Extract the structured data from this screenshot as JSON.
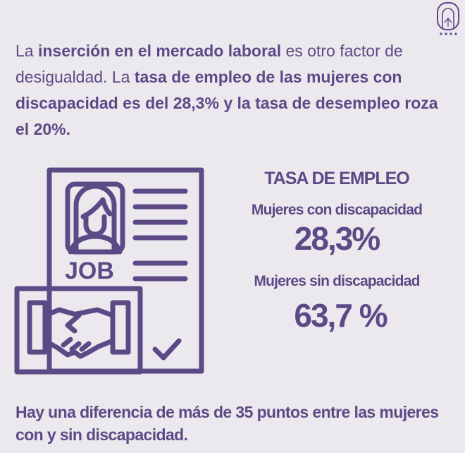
{
  "intro": {
    "t1": "La ",
    "b1": "inserción en el mercado laboral",
    "t2": " es otro factor de desigualdad. La ",
    "b2": "tasa de empleo de las mujeres con discapacidad es del 28,3% y la tasa de desempleo roza el 20%."
  },
  "illustration": {
    "badge": "JOB",
    "icon": "job-application-handshake-icon"
  },
  "stats": {
    "title": "TASA DE EMPLEO",
    "items": [
      {
        "label": "Mujeres con discapacidad",
        "value": "28,3%"
      },
      {
        "label": "Mujeres sin discapacidad",
        "value": "63,7 %"
      }
    ]
  },
  "footer": "Hay una diferencia de más de 35 puntos entre las mujeres con y sin discapacidad.",
  "colors": {
    "background": "#ebe9ee",
    "accent": "#5b4a86"
  }
}
